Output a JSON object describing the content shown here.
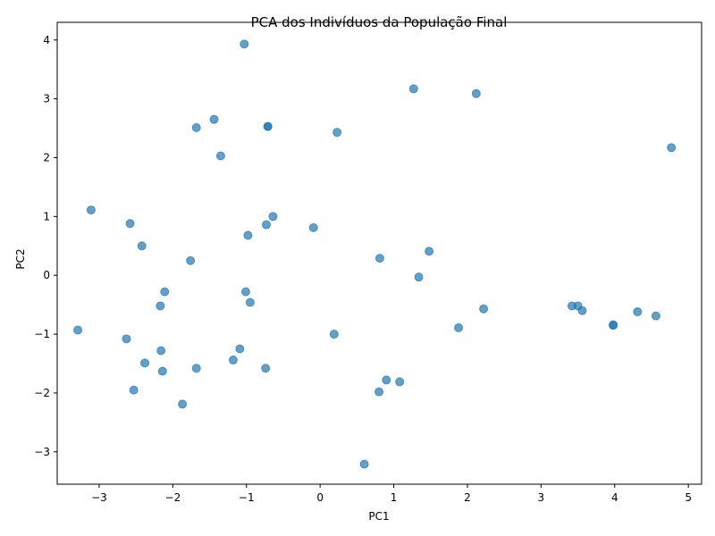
{
  "chart_data": {
    "type": "scatter",
    "title": "PCA dos Indivíduos da População Final",
    "xlabel": "PC1",
    "ylabel": "PC2",
    "xlim": [
      -3.57,
      5.18
    ],
    "ylim": [
      -3.55,
      4.3
    ],
    "xticks": [
      -3,
      -2,
      -1,
      0,
      1,
      2,
      3,
      4,
      5
    ],
    "yticks": [
      -3,
      -2,
      -1,
      0,
      1,
      2,
      3,
      4
    ],
    "xtick_labels": [
      "−3",
      "−2",
      "−1",
      "0",
      "1",
      "2",
      "3",
      "4",
      "5"
    ],
    "ytick_labels": [
      "−3",
      "−2",
      "−1",
      "0",
      "1",
      "2",
      "3",
      "4"
    ],
    "grid": false,
    "marker_color": "#1f77b4",
    "marker_alpha": 0.7,
    "points": [
      {
        "x": -1.03,
        "y": 3.93
      },
      {
        "x": 1.27,
        "y": 3.17
      },
      {
        "x": 2.12,
        "y": 3.09
      },
      {
        "x": -1.44,
        "y": 2.65
      },
      {
        "x": -1.68,
        "y": 2.51
      },
      {
        "x": -0.71,
        "y": 2.53
      },
      {
        "x": -0.71,
        "y": 2.53
      },
      {
        "x": 0.23,
        "y": 2.43
      },
      {
        "x": -1.35,
        "y": 2.03
      },
      {
        "x": 4.77,
        "y": 2.17
      },
      {
        "x": -3.11,
        "y": 1.11
      },
      {
        "x": -2.58,
        "y": 0.88
      },
      {
        "x": -0.64,
        "y": 1.0
      },
      {
        "x": -0.73,
        "y": 0.86
      },
      {
        "x": -0.98,
        "y": 0.68
      },
      {
        "x": -0.09,
        "y": 0.81
      },
      {
        "x": -2.42,
        "y": 0.5
      },
      {
        "x": -1.76,
        "y": 0.25
      },
      {
        "x": 0.81,
        "y": 0.29
      },
      {
        "x": 1.48,
        "y": 0.41
      },
      {
        "x": 1.34,
        "y": -0.03
      },
      {
        "x": -2.11,
        "y": -0.28
      },
      {
        "x": -1.01,
        "y": -0.28
      },
      {
        "x": -0.95,
        "y": -0.46
      },
      {
        "x": -2.17,
        "y": -0.52
      },
      {
        "x": 2.22,
        "y": -0.57
      },
      {
        "x": 3.42,
        "y": -0.52
      },
      {
        "x": 3.5,
        "y": -0.52
      },
      {
        "x": 3.56,
        "y": -0.6
      },
      {
        "x": 3.98,
        "y": -0.85
      },
      {
        "x": 3.98,
        "y": -0.84
      },
      {
        "x": 4.31,
        "y": -0.62
      },
      {
        "x": 4.56,
        "y": -0.69
      },
      {
        "x": 1.88,
        "y": -0.89
      },
      {
        "x": -3.29,
        "y": -0.93
      },
      {
        "x": -2.63,
        "y": -1.08
      },
      {
        "x": 0.19,
        "y": -1.0
      },
      {
        "x": -2.16,
        "y": -1.28
      },
      {
        "x": -1.09,
        "y": -1.25
      },
      {
        "x": -1.18,
        "y": -1.44
      },
      {
        "x": -2.38,
        "y": -1.49
      },
      {
        "x": -2.14,
        "y": -1.63
      },
      {
        "x": -1.68,
        "y": -1.58
      },
      {
        "x": -0.74,
        "y": -1.58
      },
      {
        "x": 0.9,
        "y": -1.78
      },
      {
        "x": 1.08,
        "y": -1.81
      },
      {
        "x": 0.8,
        "y": -1.98
      },
      {
        "x": -2.53,
        "y": -1.95
      },
      {
        "x": -1.87,
        "y": -2.19
      },
      {
        "x": 0.6,
        "y": -3.21
      }
    ]
  }
}
